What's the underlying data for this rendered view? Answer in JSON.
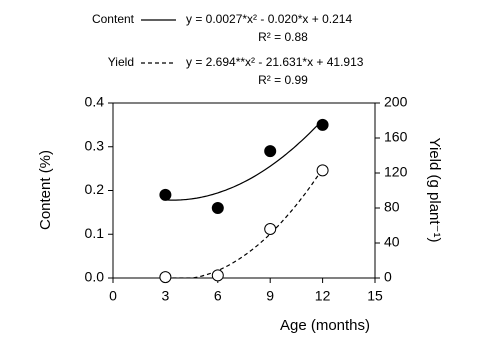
{
  "chart_data": {
    "type": "scatter",
    "x": [
      3,
      6,
      9,
      12
    ],
    "xlabel": "Age (months)",
    "ylabel": "Content (%)",
    "y2label": "Yield (g plant⁻¹)",
    "xlim": [
      0,
      15
    ],
    "xticks": [
      0,
      3,
      6,
      9,
      12,
      15
    ],
    "ylim": [
      0,
      0.4
    ],
    "yticks": [
      {
        "value": 0,
        "label": "0.0"
      },
      0.1,
      0.2,
      0.3,
      0.4
    ],
    "y2lim": [
      0,
      200
    ],
    "y2ticks": [
      0,
      40,
      80,
      120,
      160,
      200
    ],
    "series": [
      {
        "name": "Content",
        "color": "#000000",
        "marker": "filled",
        "line": "solid",
        "equation": "y = 0.0027*x² - 0.020*x + 0.214",
        "r2": "R² = 0.88",
        "values": [
          0.19,
          0.16,
          0.29,
          0.35
        ]
      },
      {
        "name": "Yield",
        "axis": "y2",
        "color": "#000000",
        "marker": "open",
        "line": "dashed",
        "equation": "y = 2.694**x² - 21.631*x + 41.913",
        "r2": "R² = 0.99",
        "values": [
          1,
          3,
          56,
          123
        ]
      }
    ]
  }
}
